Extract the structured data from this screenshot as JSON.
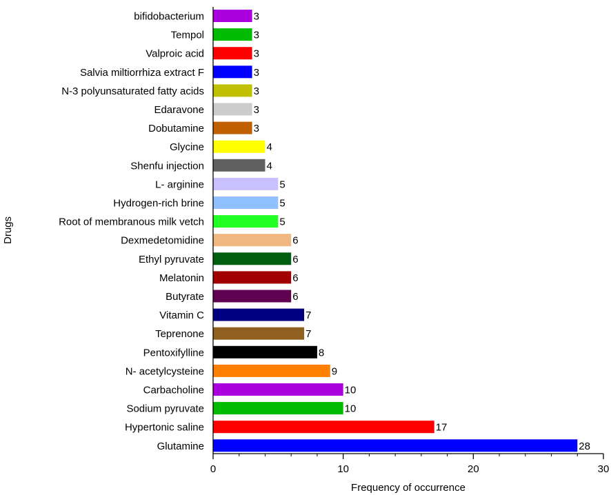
{
  "chart_data": {
    "type": "bar",
    "orientation": "horizontal",
    "xlabel": "Frequency of occurrence",
    "ylabel": "Drugs",
    "xlim": [
      0,
      30
    ],
    "xticks": [
      0,
      10,
      20,
      30
    ],
    "grid": false,
    "categories": [
      "bifidobacterium",
      "Tempol",
      "Valproic acid",
      "Salvia miltiorrhiza extract F",
      "N-3 polyunsaturated fatty acids",
      "Edaravone",
      "Dobutamine",
      "Glycine",
      "Shenfu injection",
      "L- arginine",
      "Hydrogen-rich brine",
      "Root of membranous milk vetch",
      "Dexmedetomidine",
      "Ethyl pyruvate",
      "Melatonin",
      "Butyrate",
      "Vitamin C",
      "Teprenone",
      "Pentoxifylline",
      "N- acetylcysteine",
      "Carbacholine",
      "Sodium pyruvate",
      "Hypertonic saline",
      "Glutamine"
    ],
    "values": [
      3,
      3,
      3,
      3,
      3,
      3,
      3,
      4,
      4,
      5,
      5,
      5,
      6,
      6,
      6,
      6,
      7,
      7,
      8,
      9,
      10,
      10,
      17,
      28
    ],
    "colors": [
      "#aa00dd",
      "#00bb00",
      "#ff0000",
      "#0000ff",
      "#c0c000",
      "#cccccc",
      "#c06000",
      "#ffff00",
      "#606060",
      "#c8c0ff",
      "#90c0ff",
      "#22ff22",
      "#f0b880",
      "#006010",
      "#a00000",
      "#600050",
      "#000080",
      "#906020",
      "#000000",
      "#ff8000",
      "#aa00dd",
      "#00bb00",
      "#ff0000",
      "#0000ff"
    ],
    "data_labels": [
      "3",
      "3",
      "3",
      "3",
      "3",
      "3",
      "3",
      "4",
      "4",
      "5",
      "5",
      "5",
      "6",
      "6",
      "6",
      "6",
      "7",
      "7",
      "8",
      "9",
      "10",
      "10",
      "17",
      "28"
    ]
  }
}
